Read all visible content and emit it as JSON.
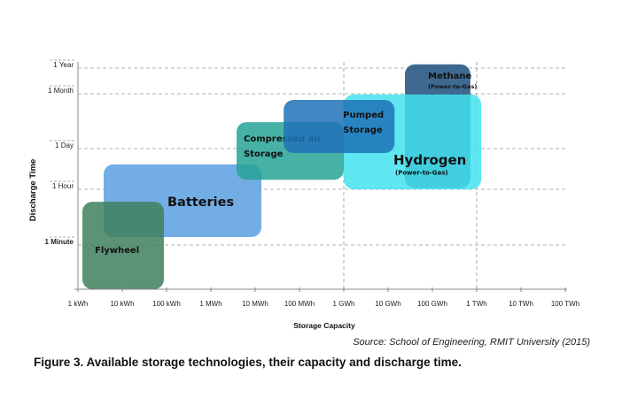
{
  "chart_data": {
    "type": "range-box",
    "xlabel": "Storage Capacity",
    "ylabel": "Discharge Time",
    "x_scale": "log",
    "x_unit": "kWh",
    "x_ticks": [
      {
        "label": "1 kWh",
        "value": 1
      },
      {
        "label": "10 kWh",
        "value": 10
      },
      {
        "label": "100 kWh",
        "value": 100
      },
      {
        "label": "1 MWh",
        "value": 1000
      },
      {
        "label": "10 MWh",
        "value": 10000
      },
      {
        "label": "100 MWh",
        "value": 100000
      },
      {
        "label": "1 GWh",
        "value": 1000000
      },
      {
        "label": "10 GWh",
        "value": 10000000
      },
      {
        "label": "100 GWh",
        "value": 100000000
      },
      {
        "label": "1 TWh",
        "value": 1000000000
      },
      {
        "label": "10 TWh",
        "value": 10000000000
      },
      {
        "label": "100 TWh",
        "value": 100000000000
      }
    ],
    "y_scale": "log",
    "y_unit": "hours",
    "y_ticks": [
      {
        "label": "1 Minute",
        "value": 0.0167
      },
      {
        "label": "1 Hour",
        "value": 1
      },
      {
        "label": "1 Day",
        "value": 24
      },
      {
        "label": "1 Month",
        "value": 720
      },
      {
        "label": "1 Year",
        "value": 8760
      }
    ],
    "grid": {
      "horizontal": "dashed at y ticks",
      "vertical": "dashed at 1 GWh and 1 TWh"
    },
    "series": [
      {
        "name": "Batteries",
        "subtitle": "",
        "x_range": [
          3.8,
          13800
        ],
        "y_range": [
          0.03,
          7
        ],
        "color": "#5b9fe0"
      },
      {
        "name": "Flywheel",
        "subtitle": "",
        "x_range": [
          1.26,
          87
        ],
        "y_range": [
          0.0006,
          0.4
        ],
        "color": "#3f7f5e"
      },
      {
        "name": "Compressed air Storage",
        "subtitle": "",
        "x_range": [
          3800,
          1000000
        ],
        "y_range": [
          2.1,
          124
        ],
        "color": "#27a396"
      },
      {
        "name": "Methane",
        "subtitle": "(Power-to-Gas)",
        "x_range": [
          24000000,
          720000000
        ],
        "y_range": [
          1.1,
          12600
        ],
        "color": "#1d4f7c"
      },
      {
        "name": "Hydrogen",
        "subtitle": "(Power-to-Gas)",
        "x_range": [
          1000000,
          1260000000
        ],
        "y_range": [
          1,
          690
        ],
        "color": "#42e2ef"
      },
      {
        "name": "Pumped Storage",
        "subtitle": "",
        "x_range": [
          44000,
          14000000
        ],
        "y_range": [
          17,
          490
        ],
        "color": "#1f72b8"
      }
    ]
  },
  "source": "Source: School of Engineering, RMIT University (2015)",
  "caption": "Figure 3. Available storage technologies, their capacity and discharge time."
}
